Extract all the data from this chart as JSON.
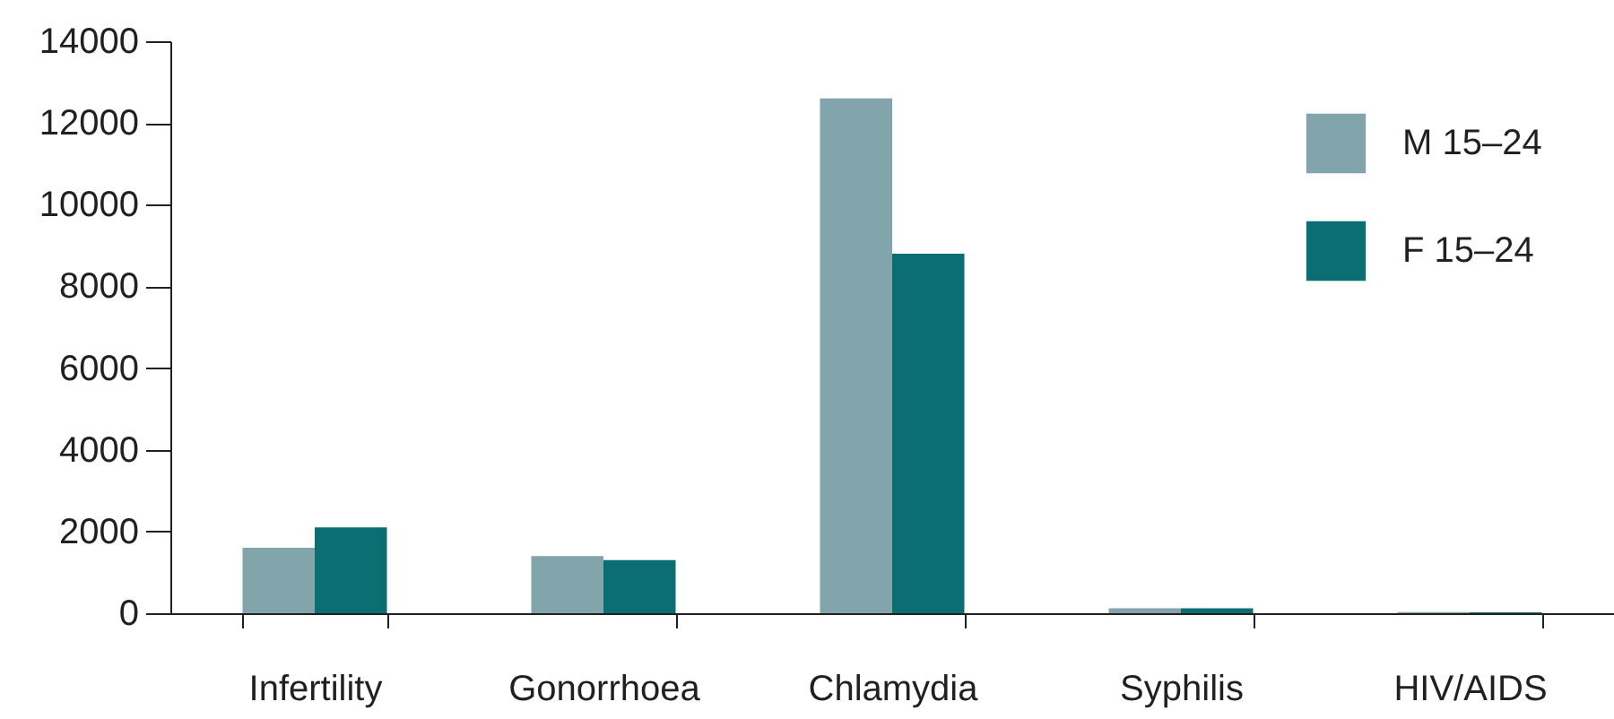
{
  "chart_data": {
    "type": "bar",
    "categories": [
      "Infertility",
      "Gonorrhoea",
      "Chlamydia",
      "Syphilis",
      "HIV/AIDS"
    ],
    "series": [
      {
        "name": "M 15–24",
        "color": "#82a4ab",
        "values": [
          1600,
          1400,
          12600,
          120,
          30
        ]
      },
      {
        "name": "F 15–24",
        "color": "#0a6e72",
        "values": [
          2100,
          1300,
          8800,
          120,
          20
        ]
      }
    ],
    "ylim": [
      0,
      14000
    ],
    "yticks": [
      0,
      2000,
      4000,
      6000,
      8000,
      10000,
      12000,
      14000
    ],
    "grid": false,
    "legend": "top right"
  }
}
